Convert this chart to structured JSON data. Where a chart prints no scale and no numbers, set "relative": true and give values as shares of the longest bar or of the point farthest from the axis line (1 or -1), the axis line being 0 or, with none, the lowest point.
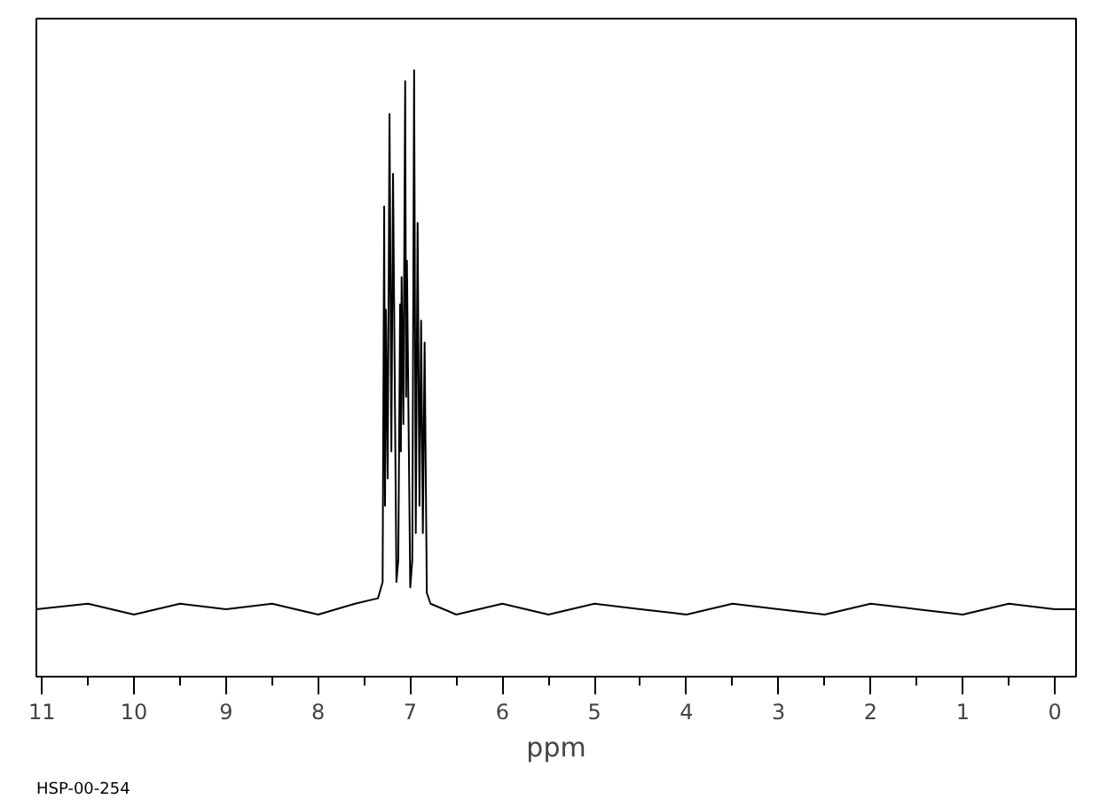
{
  "chart_data": {
    "type": "line",
    "relative": true,
    "xlabel": "ppm",
    "annotations": [
      "HSP-00-254"
    ],
    "x": [
      11.06,
      10.5,
      10,
      9.5,
      9,
      8.5,
      8,
      7.6,
      7.35,
      7.3,
      7.283,
      7.274,
      7.264,
      7.245,
      7.225,
      7.205,
      7.187,
      7.15,
      7.13,
      7.11,
      7.102,
      7.094,
      7.075,
      7.055,
      7.045,
      7.036,
      7.0,
      6.978,
      6.958,
      6.94,
      6.92,
      6.9,
      6.882,
      6.863,
      6.844,
      6.82,
      6.78,
      6.5,
      6,
      5.5,
      5,
      4.5,
      4,
      3.5,
      3,
      2.5,
      2,
      1.5,
      1,
      0.5,
      0,
      -0.23
    ],
    "series": [
      {
        "color": "#000000",
        "values": [
          0.01,
          0.02,
          0,
          0.02,
          0.01,
          0.02,
          0,
          0.02,
          0.03,
          0.06,
          0.75,
          0.2,
          0.56,
          0.25,
          0.92,
          0.3,
          0.81,
          0.06,
          0.1,
          0.57,
          0.3,
          0.62,
          0.35,
          0.98,
          0.4,
          0.65,
          0.05,
          0.1,
          1.0,
          0.15,
          0.72,
          0.2,
          0.54,
          0.15,
          0.5,
          0.04,
          0.02,
          0,
          0.02,
          0,
          0.02,
          0.01,
          0,
          0.02,
          0.01,
          0,
          0.02,
          0.01,
          0,
          0.02,
          0.01,
          0.01
        ]
      }
    ],
    "xlim": [
      11.06,
      -0.23
    ],
    "xticks": [
      11,
      10,
      9,
      8,
      7,
      6,
      5,
      4,
      3,
      2,
      1,
      0
    ],
    "grid": false,
    "marker": "none",
    "line_style": "solid"
  }
}
